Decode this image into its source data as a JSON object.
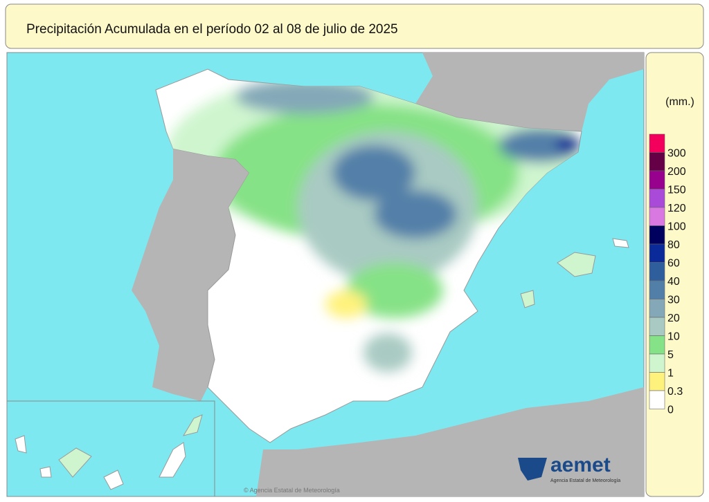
{
  "header": {
    "title": "Precipitación Acumulada en el período 02 al 08 de julio de 2025"
  },
  "legend": {
    "unit": "(mm.)",
    "items": [
      {
        "label": 300,
        "color": "#f2005c"
      },
      {
        "label": 200,
        "color": "#650046"
      },
      {
        "label": 150,
        "color": "#98008e"
      },
      {
        "label": 120,
        "color": "#a94ad8"
      },
      {
        "label": 100,
        "color": "#d878e0"
      },
      {
        "label": 80,
        "color": "#00005e"
      },
      {
        "label": 60,
        "color": "#0a2a9a"
      },
      {
        "label": 40,
        "color": "#2f5e9c"
      },
      {
        "label": 30,
        "color": "#527fa8"
      },
      {
        "label": 20,
        "color": "#84a8b8"
      },
      {
        "label": 10,
        "color": "#a9cac2"
      },
      {
        "label": 5,
        "color": "#86e286"
      },
      {
        "label": 1,
        "color": "#cff5cf"
      },
      {
        "label": 0.3,
        "color": "#fff27c"
      },
      {
        "label": 0,
        "color": "#ffffff"
      }
    ]
  },
  "logo": {
    "name": "aemet",
    "subtitle": "Agencia Estatal de Meteorología"
  },
  "copyright": "© Agencia Estatal de Meteorología"
}
